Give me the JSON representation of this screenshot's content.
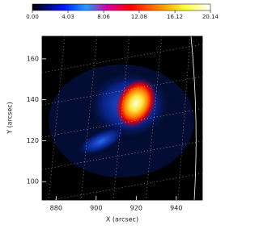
{
  "chart_data": {
    "type": "image",
    "xlabel": "X (arcsec)",
    "ylabel": "Y (arcsec)",
    "xlim": [
      873,
      953
    ],
    "ylim": [
      91,
      171
    ],
    "xticks": [
      880,
      900,
      920,
      940
    ],
    "yticks": [
      100,
      120,
      140,
      160
    ],
    "colorbar": {
      "lim": [
        0,
        20.14
      ],
      "ticks": [
        {
          "value": 0,
          "label": "0.00"
        },
        {
          "value": 4.03,
          "label": "4.03"
        },
        {
          "value": 8.06,
          "label": "8.06"
        },
        {
          "value": 12.08,
          "label": "12.08"
        },
        {
          "value": 16.12,
          "label": "16.12"
        },
        {
          "value": 20.14,
          "label": "20.14"
        }
      ]
    }
  }
}
